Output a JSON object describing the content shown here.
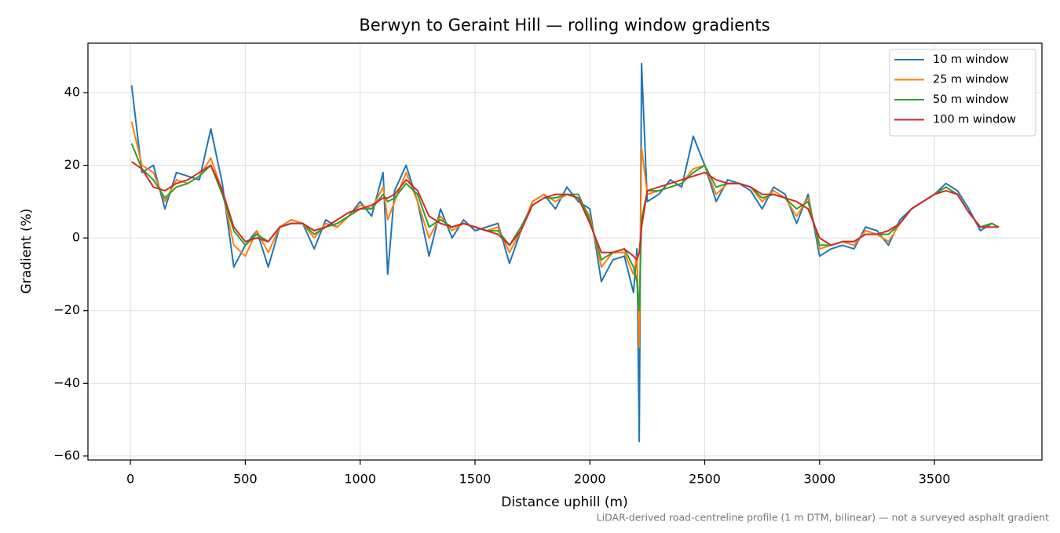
{
  "chart_data": {
    "type": "line",
    "title": "Berwyn to Geraint Hill — rolling window gradients",
    "x_label": "Distance uphill (m)",
    "y_label": "Gradient (%)",
    "footnote": "LiDAR-derived road-centreline profile (1 m DTM, bilinear) — not a surveyed asphalt gradient",
    "grid": true,
    "legend": "upper right",
    "xlim": [
      -185,
      3968
    ],
    "ylim": [
      -61.1,
      53.6
    ],
    "xticks": [
      0,
      500,
      1000,
      1500,
      2000,
      2500,
      3000,
      3500
    ],
    "yticks": [
      {
        "value": -60,
        "label": "−60"
      },
      {
        "value": -40,
        "label": "−40"
      },
      {
        "value": -20,
        "label": "−20"
      },
      0,
      20,
      40
    ],
    "x": [
      5,
      50,
      100,
      150,
      200,
      250,
      300,
      350,
      400,
      450,
      500,
      550,
      600,
      650,
      700,
      750,
      800,
      850,
      900,
      950,
      1000,
      1050,
      1100,
      1120,
      1150,
      1200,
      1250,
      1300,
      1350,
      1400,
      1450,
      1500,
      1550,
      1600,
      1650,
      1700,
      1750,
      1800,
      1850,
      1900,
      1950,
      2000,
      2050,
      2100,
      2150,
      2190,
      2205,
      2215,
      2225,
      2250,
      2300,
      2350,
      2400,
      2450,
      2500,
      2550,
      2600,
      2650,
      2700,
      2750,
      2800,
      2850,
      2900,
      2950,
      3000,
      3050,
      3100,
      3150,
      3200,
      3250,
      3300,
      3350,
      3400,
      3450,
      3500,
      3550,
      3600,
      3650,
      3700,
      3750,
      3780
    ],
    "series": [
      {
        "name": "10 m window",
        "color": "#1f77b4",
        "values": [
          42,
          18,
          20,
          8,
          18,
          17,
          16,
          30,
          15,
          -8,
          -2,
          2,
          -8,
          3,
          5,
          4,
          -3,
          5,
          3,
          6,
          10,
          6,
          18,
          -10,
          13,
          20,
          10,
          -5,
          8,
          0,
          5,
          2,
          3,
          4,
          -7,
          2,
          10,
          12,
          8,
          14,
          10,
          8,
          -12,
          -6,
          -5,
          -15,
          -3,
          -56,
          48,
          10,
          12,
          16,
          14,
          28,
          20,
          10,
          16,
          15,
          13,
          8,
          14,
          12,
          4,
          12,
          -5,
          -3,
          -2,
          -3,
          3,
          2,
          -2,
          5,
          8,
          10,
          12,
          15,
          13,
          8,
          2,
          4,
          3
        ]
      },
      {
        "name": "25 m window",
        "color": "#ff7f0e",
        "values": [
          32,
          20,
          18,
          10,
          16,
          15,
          17,
          22,
          13,
          -2,
          -5,
          2,
          -4,
          3,
          5,
          4,
          0,
          4,
          3,
          6,
          9,
          8,
          14,
          5,
          10,
          18,
          10,
          0,
          6,
          2,
          4,
          3,
          2,
          3,
          -4,
          2,
          10,
          12,
          10,
          12,
          11,
          6,
          -8,
          -4,
          -4,
          -10,
          -5,
          -30,
          25,
          12,
          13,
          14,
          15,
          19,
          20,
          12,
          15,
          15,
          14,
          10,
          13,
          11,
          6,
          11,
          -3,
          -2,
          -1,
          -2,
          2,
          1,
          -1,
          4,
          8,
          10,
          12,
          14,
          12,
          7,
          3,
          4,
          3
        ]
      },
      {
        "name": "50 m window",
        "color": "#2ca02c",
        "values": [
          26,
          19,
          16,
          11,
          14,
          15,
          17,
          20,
          12,
          2,
          -2,
          1,
          -1,
          3,
          4,
          4,
          1,
          3,
          4,
          6,
          8,
          8,
          12,
          10,
          11,
          15,
          12,
          3,
          5,
          3,
          4,
          3,
          2,
          2,
          -2,
          3,
          9,
          11,
          11,
          12,
          12,
          5,
          -6,
          -4,
          -3,
          -8,
          -12,
          -20,
          5,
          13,
          13,
          14,
          15,
          18,
          20,
          14,
          15,
          15,
          14,
          11,
          12,
          11,
          8,
          10,
          -2,
          -2,
          -1,
          -1,
          1,
          1,
          1,
          4,
          8,
          10,
          12,
          14,
          12,
          7,
          3,
          4,
          3
        ]
      },
      {
        "name": "100 m window",
        "color": "#d62728",
        "values": [
          21,
          19,
          14,
          13,
          15,
          16,
          18,
          20,
          13,
          3,
          -1,
          0,
          -1,
          3,
          4,
          4,
          2,
          3,
          5,
          7,
          8,
          9,
          11,
          11,
          12,
          16,
          13,
          6,
          4,
          3,
          4,
          3,
          2,
          1,
          -2,
          2,
          9,
          11,
          12,
          12,
          11,
          4,
          -4,
          -4,
          -3,
          -5,
          -6,
          -4,
          3,
          13,
          14,
          15,
          16,
          17,
          18,
          16,
          15,
          15,
          14,
          12,
          12,
          11,
          10,
          8,
          0,
          -2,
          -1,
          -1,
          1,
          1,
          2,
          4,
          8,
          10,
          12,
          13,
          12,
          7,
          3,
          3,
          3
        ]
      }
    ]
  }
}
